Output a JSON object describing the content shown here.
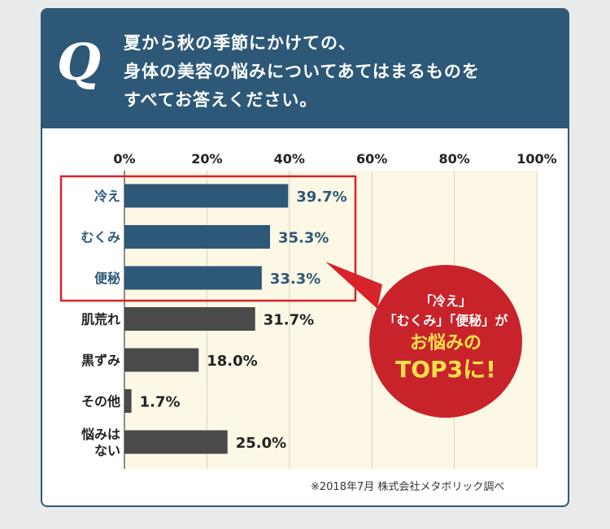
{
  "header": {
    "q_mark": "Q",
    "question_lines": [
      "夏から秋の季節にかけての、",
      "身体の美容の悩みについてあてはまるものを",
      "すべてお答えください。"
    ]
  },
  "chart_data": {
    "type": "bar",
    "orientation": "horizontal",
    "categories": [
      "冷え",
      "むくみ",
      "便秘",
      "肌荒れ",
      "黒ずみ",
      "その他",
      "悩みは\nない"
    ],
    "values": [
      39.7,
      35.3,
      33.3,
      31.7,
      18.0,
      1.7,
      25.0
    ],
    "value_labels": [
      "39.7%",
      "35.3%",
      "33.3%",
      "31.7%",
      "18.0%",
      "1.7%",
      "25.0%"
    ],
    "highlighted": [
      true,
      true,
      true,
      false,
      false,
      false,
      false
    ],
    "x_ticks": [
      "0%",
      "20%",
      "40%",
      "60%",
      "80%",
      "100%"
    ],
    "xlim": [
      0,
      100
    ],
    "grid": true,
    "colors": {
      "highlight": "#2d5878",
      "normal": "#4a4a4a",
      "plot_bg": "#fdf8e6",
      "highlight_box": "#d7232a"
    }
  },
  "callout": {
    "line1": "「冷え」",
    "line2": "「むくみ」「便秘」が",
    "line3": "お悩みの",
    "line4": "TOP3に!"
  },
  "footnote": "※2018年7月 株式会社メタボリック調べ"
}
